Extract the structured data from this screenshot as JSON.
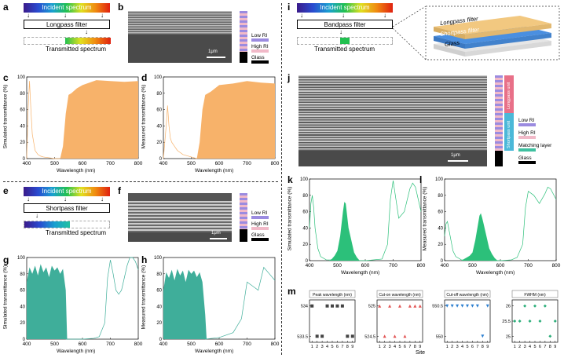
{
  "colors": {
    "teal": "#3fae9a",
    "orange": "#f7b26a",
    "green": "#2cc07a",
    "navy": "#2244aa",
    "red": "#e23",
    "blue_tri": "#2c7fd0"
  },
  "panel_a": {
    "label": "a",
    "incident": "Incident spectrum",
    "filter": "Longpass filter",
    "transmitted": "Transmitted spectrum"
  },
  "panel_b": {
    "label": "b",
    "scale": "1μm",
    "legend": [
      "Low RI",
      "High RI",
      "Glass"
    ]
  },
  "panel_c": {
    "label": "c",
    "ylabel": "Simulated transmittance (%)",
    "xlabel": "Wavelength  (nm)"
  },
  "panel_d": {
    "label": "d",
    "ylabel": "Measured transmittance (%)",
    "xlabel": "Wavelength  (nm)"
  },
  "panel_e": {
    "label": "e",
    "incident": "Incident spectrum",
    "filter": "Shortpass filter",
    "transmitted": "Transmitted spectrum"
  },
  "panel_f": {
    "label": "f",
    "scale": "1μm",
    "legend": [
      "Low RI",
      "High RI",
      "Glass"
    ]
  },
  "panel_g": {
    "label": "g",
    "ylabel": "Simulated transmittance (%)",
    "xlabel": "Wavelength  (nm)"
  },
  "panel_h": {
    "label": "h",
    "ylabel": "Measured transmittance (%)",
    "xlabel": "Wavelength  (nm)"
  },
  "panel_i": {
    "label": "i",
    "incident": "Incident spectrum",
    "filter": "Bandpass filter",
    "transmitted": "Transmitted spectrum",
    "stack": [
      "Longpass filter",
      "Shortpass filter",
      "Glass"
    ]
  },
  "panel_j": {
    "label": "j",
    "scale": "1μm",
    "legend": [
      "Low RI",
      "High RI",
      "Matching layer",
      "Glass"
    ],
    "bar_labels": [
      "Longpass unit",
      "Shortpass unit"
    ]
  },
  "panel_k": {
    "label": "k",
    "ylabel": "Simulated transmittance (%)",
    "xlabel": "Wavelength  (nm)"
  },
  "panel_l": {
    "label": "l",
    "ylabel": "Measured transmittance (%)",
    "xlabel": "Wavelength  (nm)"
  },
  "panel_m": {
    "label": "m",
    "xlabel": "Site",
    "titles": [
      "Peak wavelength (nm)",
      "Cut-on wavelength (nm)",
      "Cut-off wavelength (nm)",
      "FWHM (nm)"
    ]
  },
  "chart_data": [
    {
      "id": "c",
      "type": "area",
      "title": "",
      "xlabel": "Wavelength (nm)",
      "ylabel": "Simulated transmittance (%)",
      "xlim": [
        400,
        800
      ],
      "ylim": [
        0,
        100
      ],
      "xticks": [
        400,
        500,
        600,
        700,
        800
      ],
      "yticks": [
        0,
        20,
        40,
        60,
        80,
        100
      ],
      "fill": "#f7b26a",
      "x": [
        400,
        480,
        500,
        520,
        530,
        540,
        550,
        560,
        580,
        600,
        650,
        700,
        750,
        800
      ],
      "y": [
        0,
        0,
        0,
        0,
        15,
        55,
        78,
        80,
        86,
        90,
        96,
        95,
        94,
        95
      ],
      "line_x": [
        400,
        405,
        410,
        415,
        420,
        425,
        430,
        440,
        450,
        460,
        480,
        500,
        520
      ],
      "line_y": [
        0,
        60,
        95,
        60,
        30,
        20,
        10,
        5,
        3,
        2,
        1,
        0,
        0
      ]
    },
    {
      "id": "d",
      "type": "area",
      "title": "",
      "xlabel": "Wavelength (nm)",
      "ylabel": "Measured transmittance (%)",
      "xlim": [
        400,
        800
      ],
      "ylim": [
        0,
        100
      ],
      "xticks": [
        400,
        500,
        600,
        700,
        800
      ],
      "yticks": [
        0,
        20,
        40,
        60,
        80,
        100
      ],
      "fill": "#f7b26a",
      "x": [
        400,
        500,
        520,
        530,
        540,
        550,
        570,
        600,
        650,
        700,
        750,
        800
      ],
      "y": [
        0,
        0,
        0,
        20,
        60,
        78,
        82,
        90,
        92,
        95,
        93,
        92
      ],
      "line_x": [
        400,
        410,
        415,
        420,
        425,
        430,
        440,
        450,
        470,
        500,
        520
      ],
      "line_y": [
        0,
        40,
        65,
        40,
        25,
        20,
        15,
        10,
        5,
        2,
        0
      ]
    },
    {
      "id": "g",
      "type": "area",
      "title": "",
      "xlabel": "Wavelength (nm)",
      "ylabel": "Simulated transmittance (%)",
      "xlim": [
        400,
        800
      ],
      "ylim": [
        0,
        100
      ],
      "xticks": [
        400,
        500,
        600,
        700,
        800
      ],
      "yticks": [
        0,
        20,
        40,
        60,
        80,
        100
      ],
      "fill": "#3fae9a",
      "x": [
        400,
        410,
        420,
        430,
        440,
        450,
        460,
        470,
        480,
        490,
        500,
        510,
        520,
        530,
        540,
        545,
        550
      ],
      "y": [
        70,
        88,
        80,
        90,
        78,
        92,
        82,
        88,
        76,
        90,
        84,
        88,
        80,
        86,
        60,
        0,
        0
      ],
      "line_x": [
        540,
        600,
        640,
        660,
        680,
        690,
        700,
        710,
        720,
        730,
        740,
        750,
        760,
        770,
        780,
        790,
        800
      ],
      "line_y": [
        0,
        0,
        1,
        3,
        20,
        75,
        97,
        80,
        60,
        55,
        60,
        75,
        90,
        100,
        100,
        95,
        85
      ]
    },
    {
      "id": "h",
      "type": "area",
      "title": "",
      "xlabel": "Wavelength (nm)",
      "ylabel": "Measured transmittance (%)",
      "xlim": [
        400,
        800
      ],
      "ylim": [
        0,
        100
      ],
      "xticks": [
        400,
        500,
        600,
        700,
        800
      ],
      "yticks": [
        0,
        20,
        40,
        60,
        80,
        100
      ],
      "fill": "#3fae9a",
      "x": [
        400,
        410,
        420,
        430,
        440,
        450,
        460,
        470,
        480,
        490,
        500,
        510,
        520,
        530,
        540,
        550,
        555
      ],
      "y": [
        60,
        82,
        75,
        85,
        72,
        86,
        78,
        84,
        70,
        85,
        80,
        84,
        76,
        82,
        70,
        30,
        0
      ],
      "line_x": [
        550,
        600,
        650,
        680,
        700,
        720,
        740,
        760,
        780,
        800
      ],
      "line_y": [
        0,
        2,
        8,
        25,
        70,
        65,
        60,
        88,
        80,
        72
      ]
    },
    {
      "id": "k",
      "type": "area",
      "title": "",
      "xlabel": "Wavelength (nm)",
      "ylabel": "Simulated transmittance (%)",
      "xlim": [
        400,
        800
      ],
      "ylim": [
        0,
        100
      ],
      "xticks": [
        400,
        500,
        600,
        700,
        800
      ],
      "yticks": [
        0,
        20,
        40,
        60,
        80,
        100
      ],
      "fill": "#2cc07a",
      "x": [
        470,
        480,
        490,
        500,
        510,
        520,
        525,
        530,
        535,
        540,
        550,
        560,
        570,
        580
      ],
      "y": [
        0,
        2,
        6,
        12,
        30,
        60,
        72,
        70,
        55,
        40,
        25,
        10,
        4,
        0
      ],
      "line_x": [
        400,
        405,
        410,
        415,
        420,
        430,
        440,
        460,
        600,
        660,
        680,
        690,
        700,
        710,
        720,
        740,
        760,
        770,
        780,
        790,
        800
      ],
      "line_y": [
        40,
        70,
        80,
        65,
        40,
        15,
        5,
        1,
        0,
        2,
        20,
        75,
        98,
        75,
        52,
        60,
        88,
        95,
        90,
        75,
        60
      ]
    },
    {
      "id": "l",
      "type": "area",
      "title": "",
      "xlabel": "Wavelength (nm)",
      "ylabel": "Measured transmittance (%)",
      "xlim": [
        400,
        800
      ],
      "ylim": [
        0,
        100
      ],
      "xticks": [
        400,
        500,
        600,
        700,
        800
      ],
      "yticks": [
        0,
        20,
        40,
        60,
        80,
        100
      ],
      "fill": "#2cc07a",
      "x": [
        460,
        470,
        480,
        490,
        500,
        510,
        520,
        525,
        530,
        535,
        540,
        550,
        560,
        570,
        580,
        590
      ],
      "y": [
        0,
        2,
        4,
        6,
        10,
        25,
        45,
        55,
        58,
        52,
        45,
        30,
        15,
        8,
        3,
        0
      ],
      "line_x": [
        400,
        405,
        410,
        420,
        430,
        440,
        460,
        600,
        640,
        660,
        680,
        690,
        700,
        720,
        740,
        760,
        770,
        780,
        800
      ],
      "line_y": [
        30,
        45,
        48,
        30,
        12,
        5,
        1,
        0,
        1,
        4,
        20,
        65,
        85,
        80,
        70,
        82,
        90,
        88,
        75
      ]
    },
    {
      "id": "m1",
      "type": "scatter",
      "title": "Peak wavelength (nm)",
      "xlabel": "Site",
      "ylabel": "",
      "xlim": [
        0.5,
        9.5
      ],
      "ylim": [
        533.4,
        534.1
      ],
      "xticks": [
        1,
        2,
        3,
        4,
        5,
        6,
        7,
        8,
        9
      ],
      "yticks": [
        533.5,
        534.0
      ],
      "marker": "square",
      "x": [
        1,
        2,
        3,
        4,
        5,
        6,
        7,
        8,
        9
      ],
      "y": [
        534.0,
        533.5,
        533.5,
        534.0,
        534.0,
        534.0,
        534.0,
        533.5,
        533.5
      ]
    },
    {
      "id": "m2",
      "type": "scatter",
      "title": "Cut-on wavelength (nm)",
      "xlabel": "Site",
      "ylabel": "",
      "xlim": [
        0.5,
        9.5
      ],
      "ylim": [
        524.4,
        525.1
      ],
      "xticks": [
        1,
        2,
        3,
        4,
        5,
        6,
        7,
        8,
        9
      ],
      "yticks": [
        524.5,
        525.0
      ],
      "marker": "triangle",
      "x": [
        1,
        2,
        3,
        4,
        5,
        6,
        7,
        8,
        9
      ],
      "y": [
        525.0,
        524.5,
        525.0,
        524.5,
        525.0,
        524.5,
        525.0,
        525.0,
        525.0
      ]
    },
    {
      "id": "m3",
      "type": "scatter",
      "title": "Cut-off wavelength (nm)",
      "xlabel": "Site",
      "ylabel": "",
      "xlim": [
        0.5,
        9.5
      ],
      "ylim": [
        549.9,
        550.6
      ],
      "xticks": [
        1,
        2,
        3,
        4,
        5,
        6,
        7,
        8,
        9
      ],
      "yticks": [
        550.0,
        550.5
      ],
      "marker": "triangle-down",
      "x": [
        1,
        2,
        3,
        4,
        5,
        6,
        7,
        8,
        9
      ],
      "y": [
        550.5,
        550.5,
        550.5,
        550.5,
        550.5,
        550.5,
        550.5,
        550.0,
        550.5
      ]
    },
    {
      "id": "m4",
      "type": "scatter",
      "title": "FWHM (nm)",
      "xlabel": "Site",
      "ylabel": "",
      "xlim": [
        0.5,
        9.5
      ],
      "ylim": [
        24.8,
        26.2
      ],
      "xticks": [
        1,
        2,
        3,
        4,
        5,
        6,
        7,
        8,
        9
      ],
      "yticks": [
        25.0,
        25.5,
        26.0
      ],
      "marker": "diamond",
      "x": [
        1,
        2,
        3,
        4,
        5,
        6,
        7,
        8,
        9
      ],
      "y": [
        25.5,
        25.5,
        26.0,
        25.5,
        26.0,
        25.5,
        26.0,
        25.0,
        25.5
      ]
    }
  ]
}
